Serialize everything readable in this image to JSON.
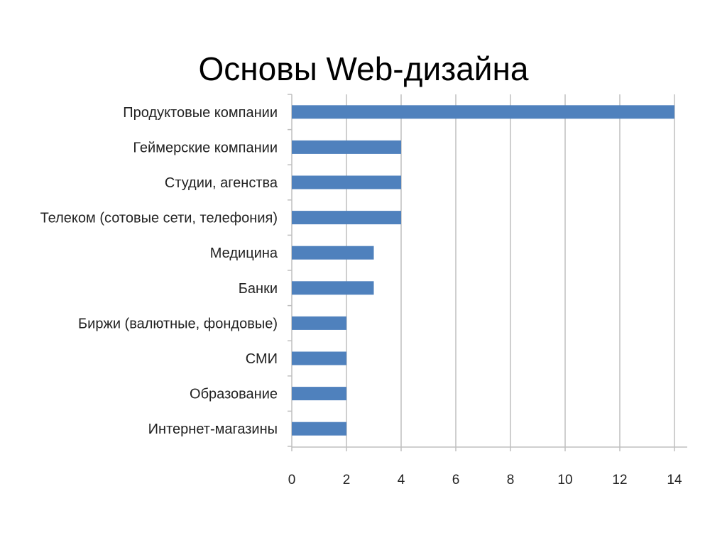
{
  "slide": {
    "title": "Основы Web-дизайна"
  },
  "chart_data": {
    "type": "bar",
    "orientation": "horizontal",
    "title": "",
    "xlabel": "",
    "ylabel": "",
    "categories": [
      "Продуктовые компании",
      "Геймерские компании",
      "Студии, агенства",
      "Телеком (сотовые сети, телефония)",
      "Медицина",
      "Банки",
      "Биржи (валютные, фондовые)",
      "СМИ",
      "Образование",
      "Интернет-магазины"
    ],
    "values": [
      14,
      4,
      4,
      4,
      3,
      3,
      2,
      2,
      2,
      2
    ],
    "xlim": [
      0,
      14
    ],
    "xticks": [
      0,
      2,
      4,
      6,
      8,
      10,
      12,
      14
    ],
    "grid": "vertical",
    "legend": "none",
    "bar_color": "#4F81BD",
    "grid_color": "#BFBFBF",
    "axis_color": "#BFBFBF"
  }
}
